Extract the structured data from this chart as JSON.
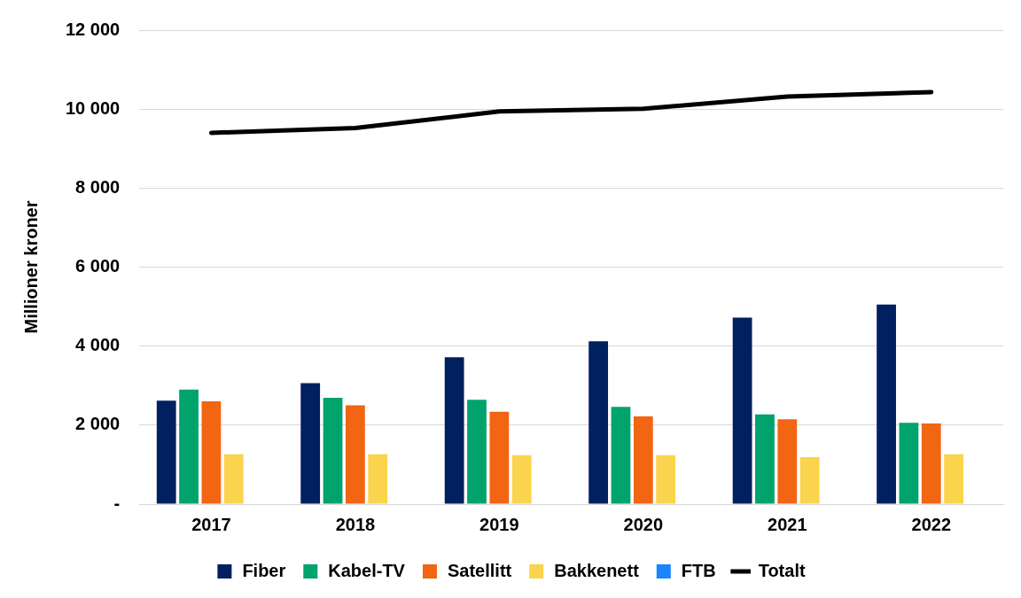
{
  "chart_data": {
    "type": "bar",
    "ylabel": "Millioner kroner",
    "categories": [
      "2017",
      "2018",
      "2019",
      "2020",
      "2021",
      "2022"
    ],
    "series": [
      {
        "name": "Fiber",
        "color": "#002060",
        "values": [
          2620,
          3060,
          3720,
          4120,
          4720,
          5050
        ]
      },
      {
        "name": "Kabel-TV",
        "color": "#00a36c",
        "values": [
          2900,
          2690,
          2640,
          2460,
          2270,
          2060
        ]
      },
      {
        "name": "Satellitt",
        "color": "#f26513",
        "values": [
          2600,
          2500,
          2340,
          2220,
          2150,
          2040
        ]
      },
      {
        "name": "Bakkenett",
        "color": "#f9d44c",
        "values": [
          1260,
          1260,
          1240,
          1240,
          1190,
          1260
        ]
      },
      {
        "name": "FTB",
        "color": "#1a85ff",
        "values": [
          0,
          0,
          0,
          0,
          0,
          0
        ]
      },
      {
        "name": "Totalt",
        "type": "line",
        "color": "#000000",
        "values": [
          9400,
          9520,
          9940,
          10010,
          10320,
          10430
        ]
      }
    ],
    "ylim": [
      0,
      12000
    ],
    "yticks": [
      {
        "value": 0,
        "label": "-"
      },
      {
        "value": 2000,
        "label": "2 000"
      },
      {
        "value": 4000,
        "label": "4 000"
      },
      {
        "value": 6000,
        "label": "6 000"
      },
      {
        "value": 8000,
        "label": "8 000"
      },
      {
        "value": 10000,
        "label": "10 000"
      },
      {
        "value": 12000,
        "label": "12 000"
      }
    ],
    "grid": "y",
    "legend": "bottom",
    "marker": "none",
    "line_style": "solid"
  }
}
